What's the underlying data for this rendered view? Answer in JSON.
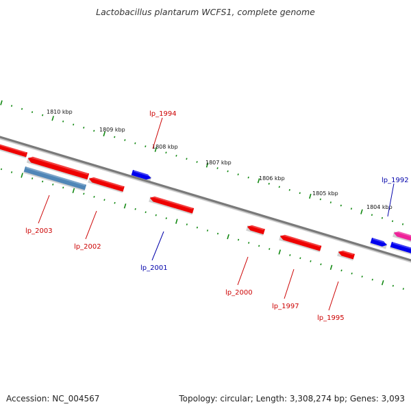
{
  "title": "Lactobacillus plantarum WCFS1, complete genome",
  "footer": {
    "accession": "Accession: NC_004567",
    "summary": "Topology: circular; Length: 3,308,274 bp; Genes: 3,093"
  },
  "colors": {
    "backbone": "#7a7a7a",
    "tick": "#118811",
    "kbp_text": "#111111",
    "reverse_gene": "#ee0000",
    "forward_gene": "#0000ee",
    "reverse_label": "#cc0000",
    "forward_label": "#0000aa",
    "steelblue_gene": "#4f86b7",
    "pink_gene": "#ee2299"
  },
  "scale": {
    "unit": "kbp",
    "labels": [
      "1810 kbp",
      "1809 kbp",
      "1808 kbp",
      "1807 kbp",
      "1806 kbp",
      "1805 kbp",
      "1804 kbp"
    ]
  },
  "genes": {
    "labelled": [
      {
        "name": "lp_2003",
        "strand": "reverse"
      },
      {
        "name": "lp_2002",
        "strand": "reverse"
      },
      {
        "name": "lp_2001",
        "strand": "forward"
      },
      {
        "name": "lp_2000",
        "strand": "reverse"
      },
      {
        "name": "lp_1997",
        "strand": "reverse"
      },
      {
        "name": "lp_1995",
        "strand": "reverse"
      },
      {
        "name": "lp_1994",
        "strand": "reverse"
      },
      {
        "name": "lp_1992",
        "strand": "forward"
      }
    ]
  }
}
